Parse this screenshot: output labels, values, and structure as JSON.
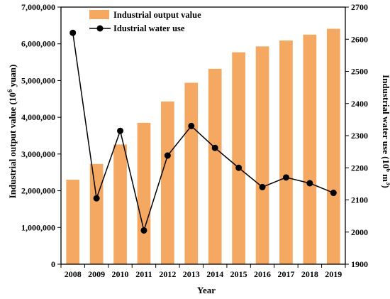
{
  "chart_data": {
    "type": "bar+line",
    "x_label": "Year",
    "categories": [
      "2008",
      "2009",
      "2010",
      "2011",
      "2012",
      "2013",
      "2014",
      "2015",
      "2016",
      "2017",
      "2018",
      "2019"
    ],
    "y_left": {
      "label": "Industrial output value (10",
      "label_sup": "6",
      "label_tail": " yuan)",
      "ylim": [
        0,
        7000000
      ],
      "ticks": [
        "0",
        "1,000,000",
        "2,000,000",
        "3,000,000",
        "4,000,000",
        "5,000,000",
        "6,000,000",
        "7,000,000"
      ],
      "tick_values": [
        0,
        1000000,
        2000000,
        3000000,
        4000000,
        5000000,
        6000000,
        7000000
      ]
    },
    "y_right": {
      "label": "Industrial water use (10",
      "label_sup1": "6",
      "label_mid": " m",
      "label_sup2": "3",
      "label_tail": ")",
      "ylim": [
        1900,
        2700
      ],
      "ticks": [
        "1900",
        "2000",
        "2100",
        "2200",
        "2300",
        "2400",
        "2500",
        "2600",
        "2700"
      ],
      "tick_values": [
        1900,
        2000,
        2100,
        2200,
        2300,
        2400,
        2500,
        2600,
        2700
      ]
    },
    "series": [
      {
        "name": "Industrial output value",
        "kind": "bar",
        "axis": "left",
        "color": "#f4a862",
        "values": [
          2300000,
          2730000,
          3260000,
          3850000,
          4430000,
          4940000,
          5320000,
          5770000,
          5930000,
          6090000,
          6250000,
          6410000
        ]
      },
      {
        "name": "Idustrial water use",
        "kind": "line",
        "axis": "right",
        "color": "#000000",
        "values": [
          2620,
          2105,
          2315,
          2005,
          2238,
          2330,
          2262,
          2200,
          2140,
          2170,
          2152,
          2122
        ]
      }
    ],
    "legend_position": "top-left"
  }
}
